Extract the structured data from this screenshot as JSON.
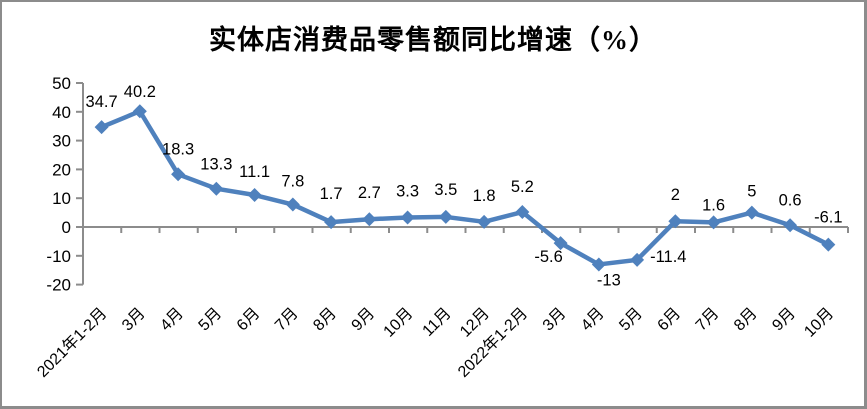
{
  "chart_data": {
    "type": "line",
    "title": "实体店消费品零售额同比增速（%）",
    "categories": [
      "2021年1-2月",
      "3月",
      "4月",
      "5月",
      "6月",
      "7月",
      "8月",
      "9月",
      "10月",
      "11月",
      "12月",
      "2022年1-2月",
      "3月",
      "4月",
      "5月",
      "6月",
      "7月",
      "8月",
      "9月",
      "10月"
    ],
    "series": [
      {
        "name": "实体店消费品零售额同比增速",
        "values": [
          34.7,
          40.2,
          18.3,
          13.3,
          11.1,
          7.8,
          1.7,
          2.7,
          3.3,
          3.5,
          1.8,
          5.2,
          -5.6,
          -13,
          -11.4,
          2,
          1.6,
          5,
          0.6,
          -6.1
        ]
      }
    ],
    "data_labels": [
      "34.7",
      "40.2",
      "18.3",
      "13.3",
      "11.1",
      "7.8",
      "1.7",
      "2.7",
      "3.3",
      "3.5",
      "1.8",
      "5.2",
      "-5.6",
      "-13",
      "-11.4",
      "2",
      "1.6",
      "5",
      "0.6",
      "-6.1"
    ],
    "xlabel": "",
    "ylabel": "",
    "y_ticks": [
      50,
      40,
      30,
      20,
      10,
      0,
      -10,
      -20
    ],
    "ylim": [
      -20,
      50
    ],
    "grid": false,
    "legend_position": "none",
    "marker": "diamond",
    "series_color": "#4F81BD",
    "axis_color": "#8c8c8c",
    "text_color": "#000000"
  }
}
